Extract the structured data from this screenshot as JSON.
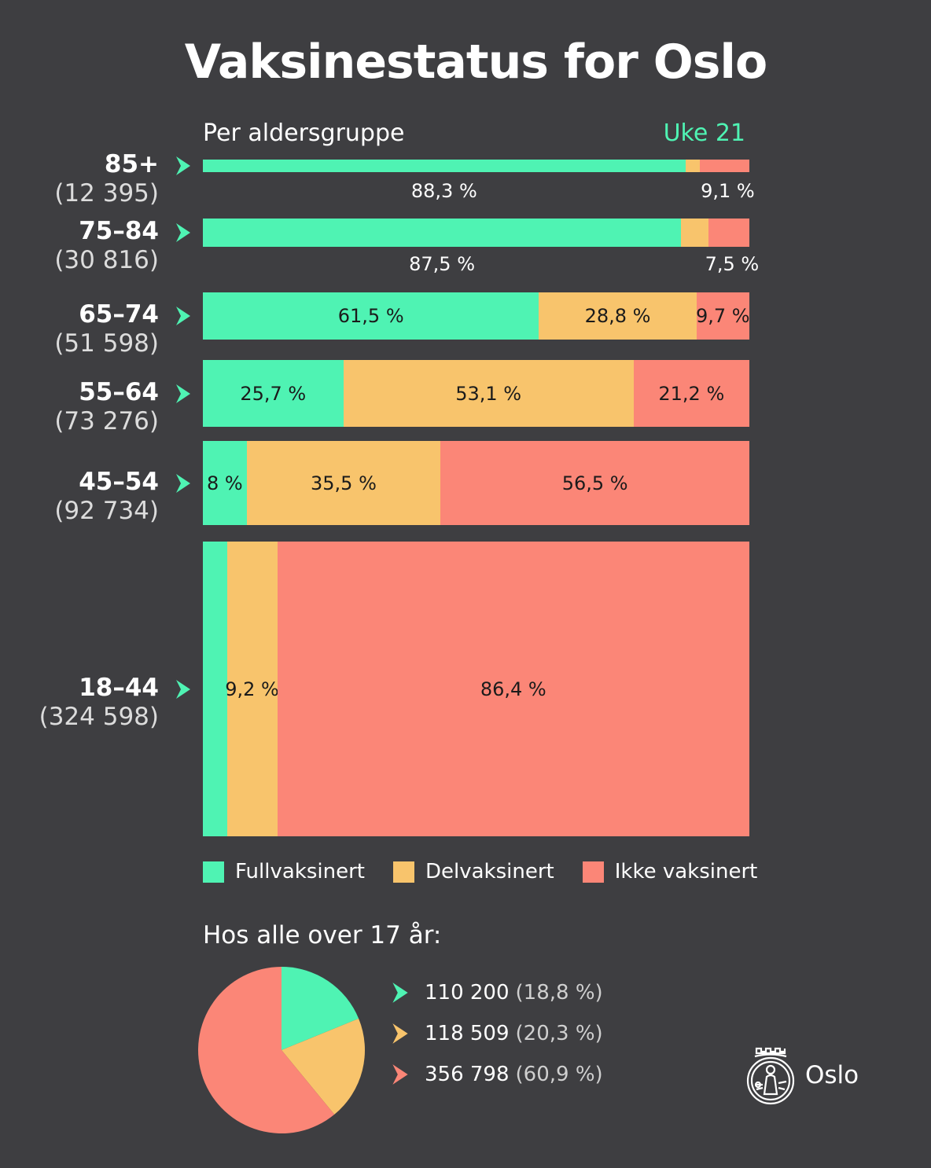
{
  "title": "Vaksinestatus for Oslo",
  "subtitle": "Per aldersgruppe",
  "week": "Uke 21",
  "colors": {
    "full": "#4ff3b3",
    "partial": "#f8c46c",
    "none": "#fb8677",
    "background": "#3e3e41"
  },
  "chart_data": [
    {
      "type": "bar",
      "orientation": "horizontal",
      "stacked": true,
      "normalized": true,
      "bar_thickness_encodes": "group_count",
      "categories": [
        "85+",
        "75–84",
        "65–74",
        "55–64",
        "45–54",
        "18–44"
      ],
      "group_counts": [
        "(12 395)",
        "(30 816)",
        "(51 598)",
        "(73 276)",
        "(92 734)",
        "(324 598)"
      ],
      "group_count_values": [
        12395,
        30816,
        51598,
        73276,
        92734,
        324598
      ],
      "series": [
        {
          "name": "Fullvaksinert",
          "values": [
            88.3,
            87.5,
            61.5,
            25.7,
            8.0,
            4.4
          ]
        },
        {
          "name": "Delvaksinert",
          "values": [
            2.6,
            5.0,
            28.8,
            53.1,
            35.5,
            9.2
          ]
        },
        {
          "name": "Ikke vaksinert",
          "values": [
            9.1,
            7.5,
            9.7,
            21.2,
            56.5,
            86.4
          ]
        }
      ],
      "labels": [
        [
          "88,3 %",
          "",
          "9,1 %"
        ],
        [
          "87,5 %",
          "",
          "7,5 %"
        ],
        [
          "61,5 %",
          "28,8 %",
          "9,7 %"
        ],
        [
          "25,7 %",
          "53,1 %",
          "21,2 %"
        ],
        [
          "8 %",
          "35,5 %",
          "56,5 %"
        ],
        [
          "",
          "9,2 %",
          "86,4 %"
        ]
      ],
      "xlim": [
        0,
        100
      ],
      "legend_position": "bottom"
    },
    {
      "type": "pie",
      "title": "Hos alle over 17 år:",
      "slices": [
        {
          "name": "Fullvaksinert",
          "value": 110200,
          "value_label": "110 200",
          "pct_label": "(18,8 %)"
        },
        {
          "name": "Delvaksinert",
          "value": 118509,
          "value_label": "118 509",
          "pct_label": "(20,3 %)"
        },
        {
          "name": "Ikke vaksinert",
          "value": 356798,
          "value_label": "356 798",
          "pct_label": "(60,9 %)"
        }
      ],
      "legend_position": "right"
    }
  ],
  "logo": {
    "text": "Oslo"
  }
}
